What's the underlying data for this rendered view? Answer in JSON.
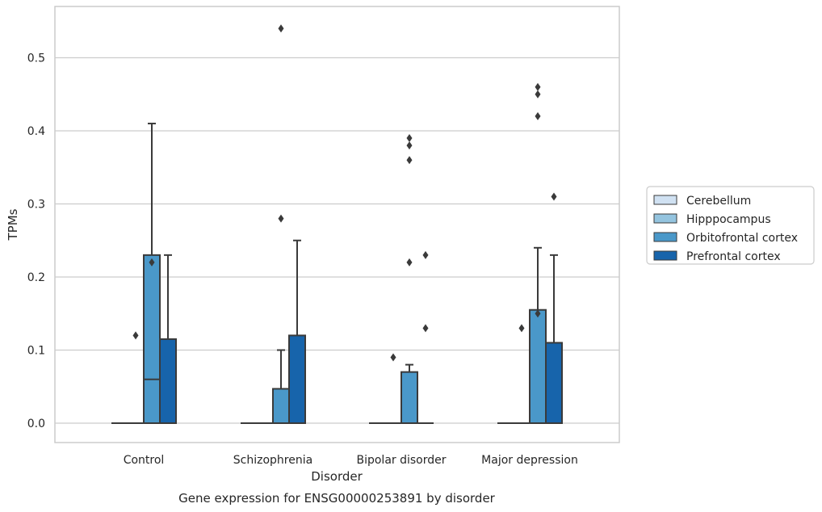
{
  "caption": "Gene expression for ENSG00000253891 by disorder",
  "chart_data": {
    "type": "box",
    "title": "",
    "xlabel": "Disorder",
    "ylabel": "TPMs",
    "ylim": [
      -0.027,
      0.57
    ],
    "yticks": [
      "0.0",
      "0.1",
      "0.2",
      "0.3",
      "0.4",
      "0.5"
    ],
    "grid": "horizontal",
    "legend_position": "right",
    "categories": [
      "Control",
      "Schizophrenia",
      "Bipolar disorder",
      "Major depression"
    ],
    "series": [
      {
        "name": "Cerebellum",
        "color": "#d0e1f2",
        "boxes": [
          {
            "q1": 0,
            "median": 0,
            "q3": 0,
            "whisker_low": 0,
            "whisker_high": 0,
            "outliers": []
          },
          {
            "q1": 0,
            "median": 0,
            "q3": 0,
            "whisker_low": 0,
            "whisker_high": 0,
            "outliers": []
          },
          {
            "q1": 0,
            "median": 0,
            "q3": 0,
            "whisker_low": 0,
            "whisker_high": 0,
            "outliers": []
          },
          {
            "q1": 0,
            "median": 0,
            "q3": 0,
            "whisker_low": 0,
            "whisker_high": 0,
            "outliers": []
          }
        ]
      },
      {
        "name": "Hipppocampus",
        "color": "#94c4df",
        "boxes": [
          {
            "q1": 0,
            "median": 0,
            "q3": 0,
            "whisker_low": 0,
            "whisker_high": 0,
            "outliers": [
              0.12
            ]
          },
          {
            "q1": 0,
            "median": 0,
            "q3": 0,
            "whisker_low": 0,
            "whisker_high": 0,
            "outliers": []
          },
          {
            "q1": 0,
            "median": 0,
            "q3": 0,
            "whisker_low": 0,
            "whisker_high": 0,
            "outliers": [
              0.09
            ]
          },
          {
            "q1": 0,
            "median": 0,
            "q3": 0,
            "whisker_low": 0,
            "whisker_high": 0,
            "outliers": [
              0.13
            ]
          }
        ]
      },
      {
        "name": "Orbitofrontal cortex",
        "color": "#4a98c9",
        "boxes": [
          {
            "q1": 0,
            "median": 0.06,
            "q3": 0.23,
            "whisker_low": 0,
            "whisker_high": 0.41,
            "outliers": [
              0.22
            ]
          },
          {
            "q1": 0,
            "median": 0,
            "q3": 0.047,
            "whisker_low": 0,
            "whisker_high": 0.1,
            "outliers": [
              0.28,
              0.54
            ]
          },
          {
            "q1": 0,
            "median": 0,
            "q3": 0.07,
            "whisker_low": 0,
            "whisker_high": 0.08,
            "outliers": [
              0.38,
              0.39,
              0.36,
              0.22
            ]
          },
          {
            "q1": 0,
            "median": 0,
            "q3": 0.155,
            "whisker_low": 0,
            "whisker_high": 0.24,
            "outliers": [
              0.15,
              0.46,
              0.45,
              0.42
            ]
          }
        ]
      },
      {
        "name": "Prefrontal cortex",
        "color": "#1764ab",
        "boxes": [
          {
            "q1": 0,
            "median": 0,
            "q3": 0.115,
            "whisker_low": 0,
            "whisker_high": 0.23,
            "outliers": []
          },
          {
            "q1": 0,
            "median": 0,
            "q3": 0.12,
            "whisker_low": 0,
            "whisker_high": 0.25,
            "outliers": []
          },
          {
            "q1": 0,
            "median": 0,
            "q3": 0,
            "whisker_low": 0,
            "whisker_high": 0,
            "outliers": [
              0.23,
              0.13
            ]
          },
          {
            "q1": 0,
            "median": 0,
            "q3": 0.11,
            "whisker_low": 0,
            "whisker_high": 0.23,
            "outliers": [
              0.31
            ]
          }
        ]
      }
    ]
  }
}
